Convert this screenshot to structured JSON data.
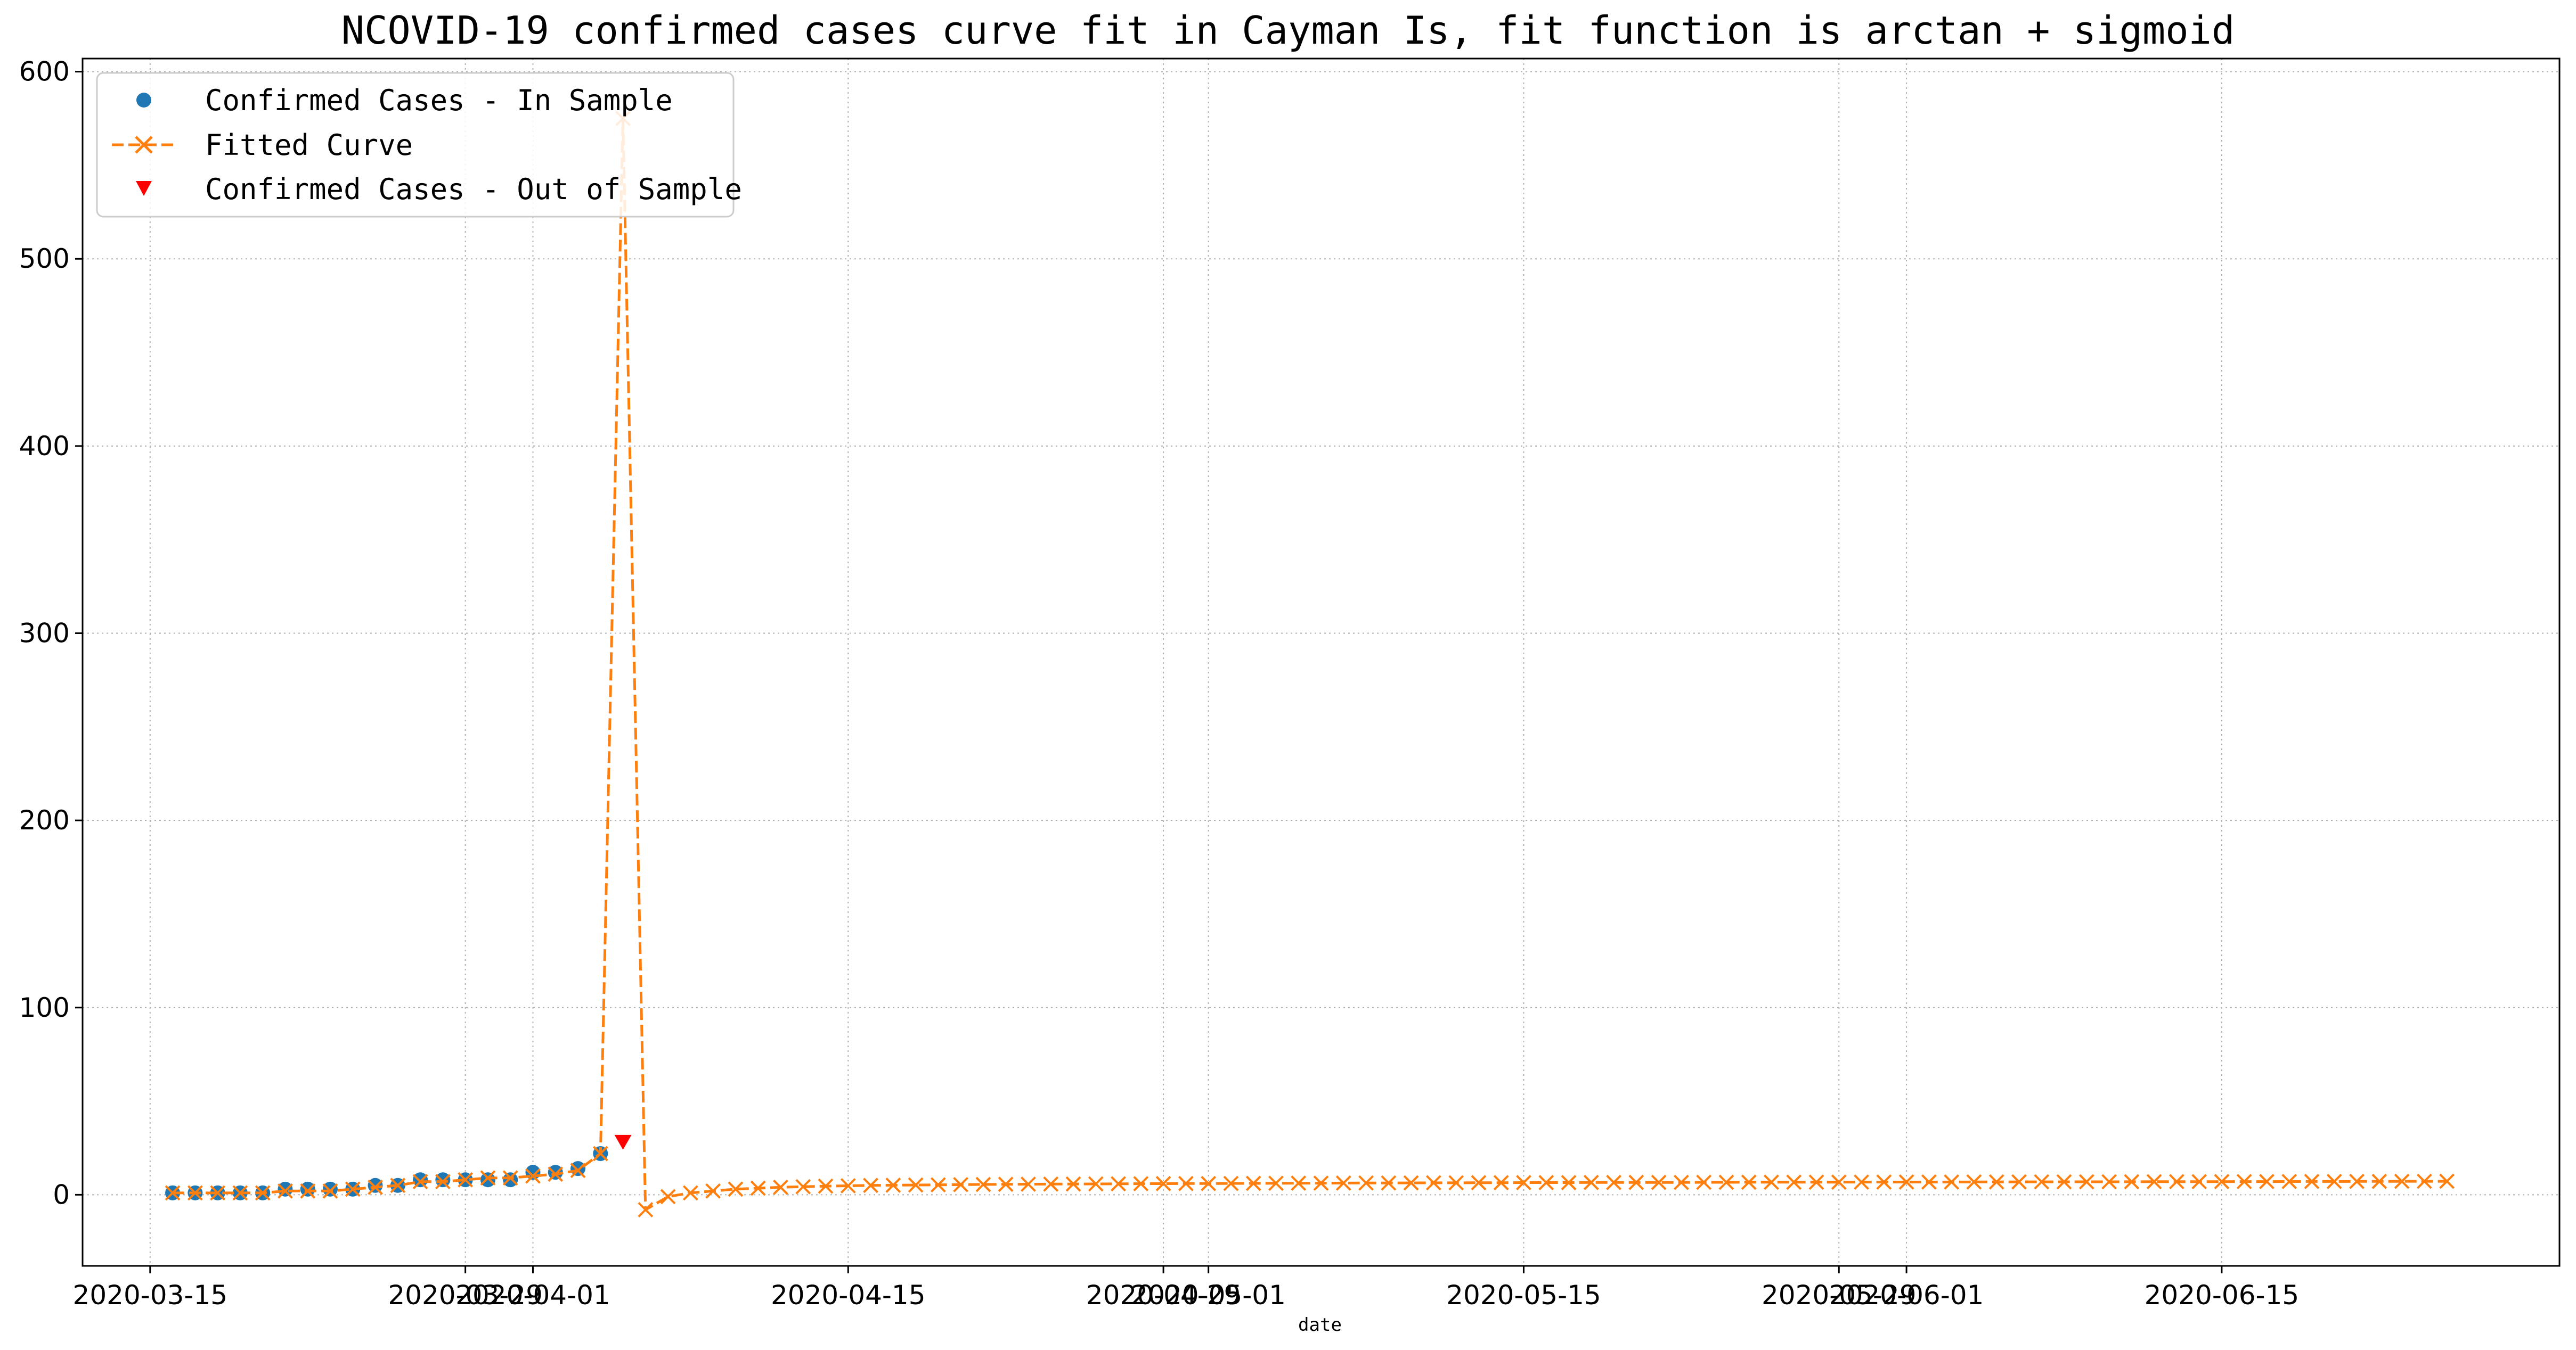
{
  "chart_data": {
    "type": "line",
    "title": "NCOVID-19 confirmed cases curve fit in Cayman Is, fit function is arctan + sigmoid",
    "xlabel": "date",
    "ylabel": "",
    "ylim": [
      -38,
      607
    ],
    "xlim": [
      "2020-03-12",
      "2020-06-30"
    ],
    "grid": true,
    "legend_position": "top-left",
    "y_ticks": [
      0,
      100,
      200,
      300,
      400,
      500,
      600
    ],
    "x_ticks": [
      {
        "date": "2020-03-15",
        "label": "2020-03-15"
      },
      {
        "date": "2020-03-29",
        "label": "2020-03-29"
      },
      {
        "date": "2020-04-01",
        "label": "2020-04-01"
      },
      {
        "date": "2020-04-15",
        "label": "2020-04-15"
      },
      {
        "date": "2020-04-29",
        "label": "2020-04-29"
      },
      {
        "date": "2020-05-01",
        "label": "2020-05-01"
      },
      {
        "date": "2020-05-15",
        "label": "2020-05-15"
      },
      {
        "date": "2020-05-29",
        "label": "2020-05-29"
      },
      {
        "date": "2020-06-01",
        "label": "2020-06-01"
      },
      {
        "date": "2020-06-15",
        "label": "2020-06-15"
      }
    ],
    "series": [
      {
        "name": "Confirmed Cases - In Sample",
        "kind": "points",
        "marker": "circle",
        "color": "#1f77b4",
        "start_date": "2020-03-16",
        "values": [
          1,
          1,
          1,
          1,
          1,
          3,
          3,
          3,
          3,
          5,
          5,
          8,
          8,
          8,
          8,
          8,
          12,
          12,
          14,
          22
        ]
      },
      {
        "name": "Fitted Curve",
        "kind": "line",
        "marker": "x",
        "style": "dashed",
        "color": "#ff7f0e",
        "start_date": "2020-03-16",
        "values": [
          1,
          1,
          1,
          1,
          1,
          2,
          2,
          2,
          3,
          4,
          5,
          7,
          7,
          8,
          9,
          9,
          10,
          11,
          13,
          22,
          575,
          -8,
          -1,
          1,
          2,
          3,
          3.5,
          4,
          4.3,
          4.6,
          4.8,
          5,
          5.1,
          5.2,
          5.3,
          5.4,
          5.5,
          5.6,
          5.65,
          5.7,
          5.75,
          5.8,
          5.85,
          5.9,
          5.95,
          6,
          6,
          6.05,
          6.1,
          6.15,
          6.2,
          6.2,
          6.25,
          6.3,
          6.3,
          6.35,
          6.4,
          6.4,
          6.45,
          6.45,
          6.5,
          6.5,
          6.5,
          6.55,
          6.55,
          6.6,
          6.6,
          6.6,
          6.65,
          6.65,
          6.7,
          6.7,
          6.7,
          6.72,
          6.74,
          6.76,
          6.78,
          6.8,
          6.8,
          6.82,
          6.84,
          6.86,
          6.88,
          6.9,
          6.9,
          6.92,
          6.94,
          6.96,
          6.98,
          7,
          7,
          7.02,
          7.04,
          7.06,
          7.08,
          7.1,
          7.1,
          7.12,
          7.14,
          7.16,
          7.18,
          7.2
        ]
      },
      {
        "name": "Confirmed Cases - Out of Sample",
        "kind": "points",
        "marker": "triangle-down",
        "color": "#ff0000",
        "start_date": "2020-04-05",
        "values": [
          28
        ]
      }
    ]
  }
}
